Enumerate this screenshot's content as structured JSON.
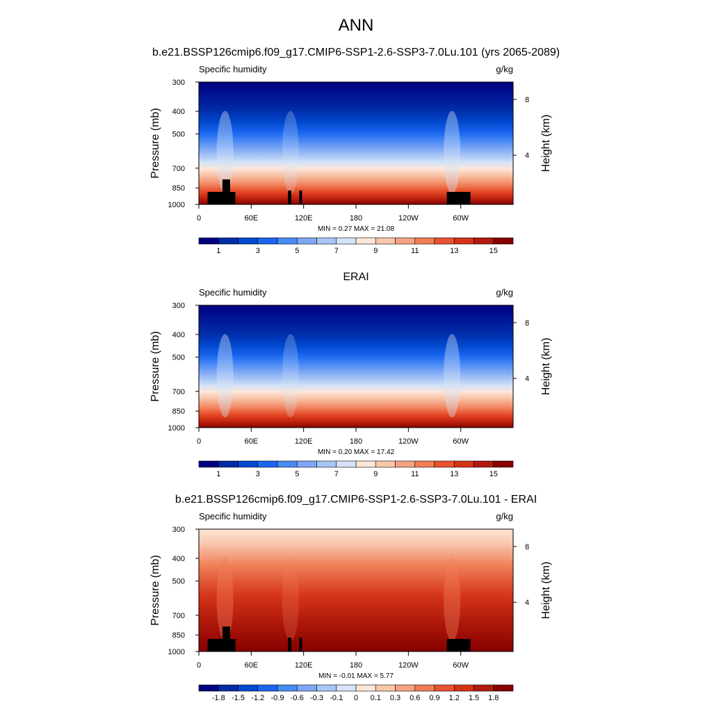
{
  "figure": {
    "title": "ANN"
  },
  "colorbars": {
    "absolute": {
      "colors": [
        "#00007f",
        "#002ba8",
        "#0049cf",
        "#1a66f0",
        "#4a8af5",
        "#7ea8f5",
        "#a9c6f5",
        "#d4e3f7",
        "#fde6d8",
        "#f9c6ad",
        "#f5a482",
        "#f07e57",
        "#e8542f",
        "#d43318",
        "#b11a0c",
        "#860000"
      ],
      "labels": [
        "1",
        "3",
        "5",
        "7",
        "9",
        "11",
        "13",
        "15"
      ]
    },
    "difference": {
      "colors": [
        "#00007f",
        "#002ba8",
        "#0049cf",
        "#1a66f0",
        "#4a8af5",
        "#7ea8f5",
        "#a9c6f5",
        "#d4e3f7",
        "#fde6d8",
        "#f9c6ad",
        "#f5a482",
        "#f07e57",
        "#e8542f",
        "#d43318",
        "#b11a0c",
        "#860000"
      ],
      "labels": [
        "-1.8",
        "-1.5",
        "-1.2",
        "-0.9",
        "-0.6",
        "-0.3",
        "-0.1",
        "0",
        "0.1",
        "0.3",
        "0.6",
        "0.9",
        "1.2",
        "1.5",
        "1.8"
      ]
    }
  },
  "chart_data": [
    {
      "type": "heatmap",
      "title": "b.e21.BSSP126cmip6.f09_g17.CMIP6-SSP1-2.6-SSP3-7.0Lu.101 (yrs 2065-2089)",
      "left_label": "Specific humidity",
      "right_label": "g/kg",
      "ylabel": "Pressure (mb)",
      "ylabel_right": "Height (km)",
      "yticks": [
        "300",
        "400",
        "500",
        "700",
        "850",
        "1000"
      ],
      "yticks_right": [
        "8",
        "4"
      ],
      "xticks": [
        "0",
        "60E",
        "120E",
        "180",
        "120W",
        "60W"
      ],
      "xlim": [
        0,
        360
      ],
      "ylim": [
        1000,
        300
      ],
      "stats": "MIN =   0.27  MAX =  21.08",
      "min": 0.27,
      "max": 21.08,
      "colorbar": "absolute",
      "topography": true
    },
    {
      "type": "heatmap",
      "title": "ERAI",
      "left_label": "Specific humidity",
      "right_label": "g/kg",
      "ylabel": "Pressure (mb)",
      "ylabel_right": "Height (km)",
      "yticks": [
        "300",
        "400",
        "500",
        "700",
        "850",
        "1000"
      ],
      "yticks_right": [
        "8",
        "4"
      ],
      "xticks": [
        "0",
        "60E",
        "120E",
        "180",
        "120W",
        "60W"
      ],
      "xlim": [
        0,
        360
      ],
      "ylim": [
        1000,
        300
      ],
      "stats": "MIN =   0.20  MAX =  17.42",
      "min": 0.2,
      "max": 17.42,
      "colorbar": "absolute",
      "topography": false
    },
    {
      "type": "heatmap",
      "title": "b.e21.BSSP126cmip6.f09_g17.CMIP6-SSP1-2.6-SSP3-7.0Lu.101 - ERAI",
      "left_label": "Specific humidity",
      "right_label": "g/kg",
      "ylabel": "Pressure (mb)",
      "ylabel_right": "Height (km)",
      "yticks": [
        "300",
        "400",
        "500",
        "700",
        "850",
        "1000"
      ],
      "yticks_right": [
        "8",
        "4"
      ],
      "xticks": [
        "0",
        "60E",
        "120E",
        "180",
        "120W",
        "60W"
      ],
      "xlim": [
        0,
        360
      ],
      "ylim": [
        1000,
        300
      ],
      "stats": "MIN =  -0.01  MAX =   5.77",
      "min": -0.01,
      "max": 5.77,
      "colorbar": "difference",
      "topography": true
    }
  ]
}
